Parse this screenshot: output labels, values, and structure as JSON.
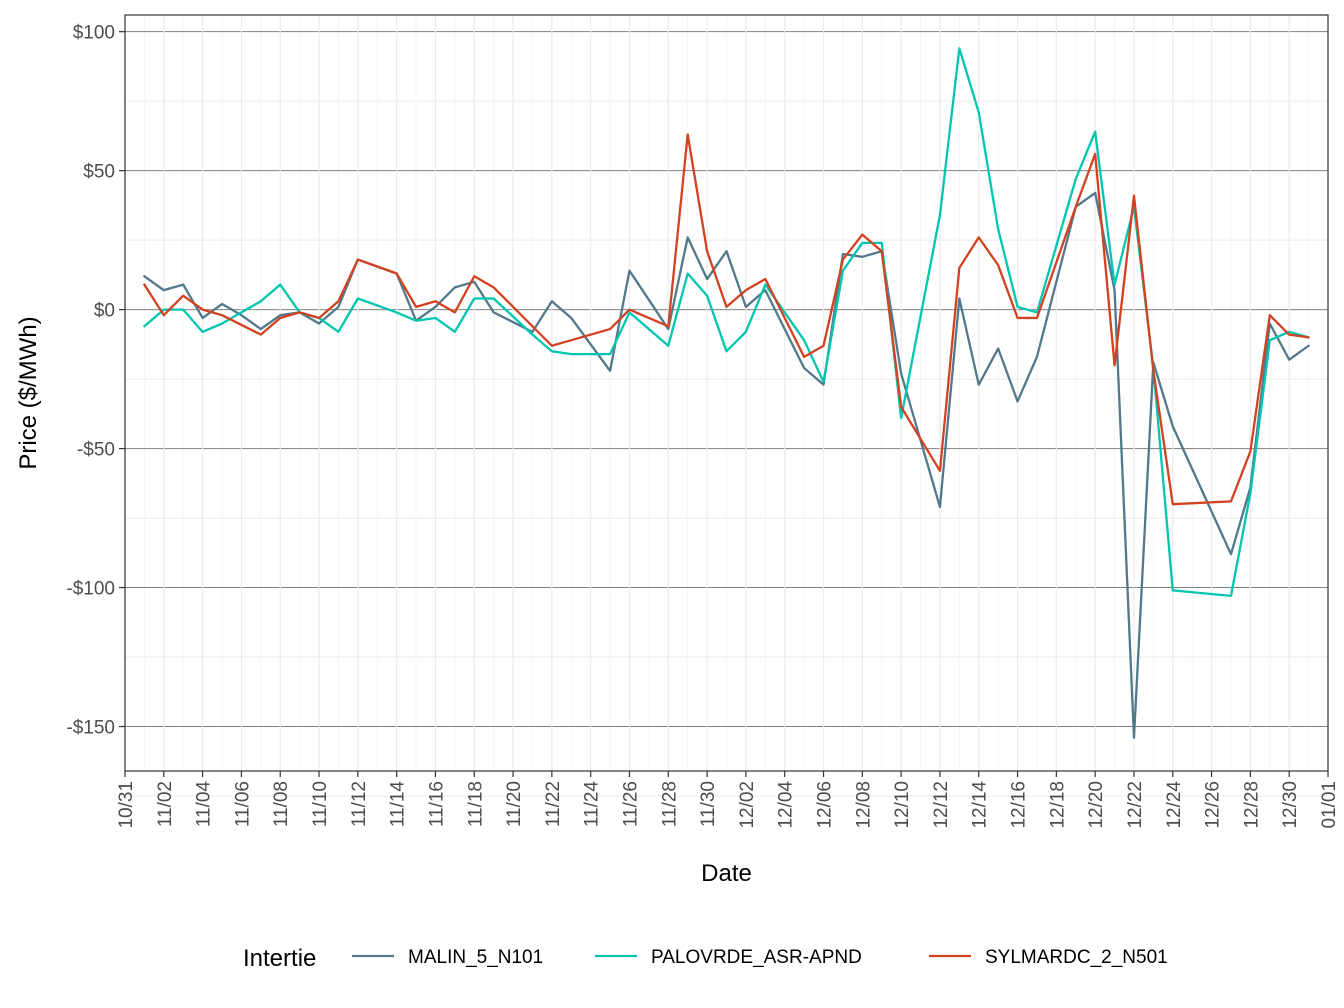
{
  "chart_data": {
    "type": "line",
    "xlabel": "Date",
    "ylabel": "Price ($/MWh)",
    "x_tick_labels": [
      "10/31",
      "11/02",
      "11/04",
      "11/06",
      "11/08",
      "11/10",
      "11/12",
      "11/14",
      "11/16",
      "11/18",
      "11/20",
      "11/22",
      "11/24",
      "11/26",
      "11/28",
      "11/30",
      "12/02",
      "12/04",
      "12/06",
      "12/08",
      "12/10",
      "12/12",
      "12/14",
      "12/16",
      "12/18",
      "12/20",
      "12/22",
      "12/24",
      "12/26",
      "12/28",
      "12/30",
      "01/01"
    ],
    "y_ticks": [
      100,
      50,
      0,
      -50,
      -100,
      -150
    ],
    "y_tick_labels": [
      "$100",
      "$50",
      "$0",
      "-$50",
      "-$100",
      "-$150"
    ],
    "ylim": [
      -166,
      106
    ],
    "x_range_days": [
      0,
      62
    ],
    "grid": true,
    "legend": {
      "title": "Intertie",
      "position": "bottom"
    },
    "series": [
      {
        "name": "MALIN_5_N101",
        "color": "#52788a",
        "points": [
          [
            "11/01",
            12
          ],
          [
            "11/02",
            7
          ],
          [
            "11/03",
            9
          ],
          [
            "11/04",
            -3
          ],
          [
            "11/05",
            2
          ],
          [
            "11/06",
            -2
          ],
          [
            "11/07",
            -7
          ],
          [
            "11/08",
            -2
          ],
          [
            "11/09",
            -1
          ],
          [
            "11/10",
            -5
          ],
          [
            "11/11",
            1
          ],
          [
            "11/12",
            18
          ],
          [
            "11/14",
            13
          ],
          [
            "11/15",
            -4
          ],
          [
            "11/16",
            1
          ],
          [
            "11/17",
            8
          ],
          [
            "11/18",
            10
          ],
          [
            "11/19",
            -1
          ],
          [
            "11/21",
            -8
          ],
          [
            "11/22",
            3
          ],
          [
            "11/23",
            -3
          ],
          [
            "11/25",
            -22
          ],
          [
            "11/26",
            14
          ],
          [
            "11/28",
            -7
          ],
          [
            "11/29",
            26
          ],
          [
            "11/30",
            11
          ],
          [
            "12/01",
            21
          ],
          [
            "12/02",
            1
          ],
          [
            "12/03",
            7
          ],
          [
            "12/05",
            -21
          ],
          [
            "12/06",
            -27
          ],
          [
            "12/07",
            20
          ],
          [
            "12/08",
            19
          ],
          [
            "12/09",
            21
          ],
          [
            "12/10",
            -23
          ],
          [
            "12/12",
            -71
          ],
          [
            "12/13",
            4
          ],
          [
            "12/14",
            -27
          ],
          [
            "12/15",
            -14
          ],
          [
            "12/16",
            -33
          ],
          [
            "12/17",
            -17
          ],
          [
            "12/19",
            37
          ],
          [
            "12/20",
            42
          ],
          [
            "12/21",
            7
          ],
          [
            "12/22",
            -154
          ],
          [
            "12/23",
            -19
          ],
          [
            "12/24",
            -42
          ],
          [
            "12/27",
            -88
          ],
          [
            "12/28",
            -64
          ],
          [
            "12/29",
            -5
          ],
          [
            "12/30",
            -18
          ],
          [
            "12/31",
            -13
          ]
        ]
      },
      {
        "name": "PALOVRDE_ASR-APND",
        "color": "#00c5b0",
        "points": [
          [
            "11/01",
            -6
          ],
          [
            "11/02",
            0
          ],
          [
            "11/03",
            0
          ],
          [
            "11/04",
            -8
          ],
          [
            "11/05",
            -5
          ],
          [
            "11/06",
            -1
          ],
          [
            "11/07",
            3
          ],
          [
            "11/08",
            9
          ],
          [
            "11/09",
            -1
          ],
          [
            "11/10",
            -3
          ],
          [
            "11/11",
            -8
          ],
          [
            "11/12",
            4
          ],
          [
            "11/14",
            -1
          ],
          [
            "11/15",
            -4
          ],
          [
            "11/16",
            -3
          ],
          [
            "11/17",
            -8
          ],
          [
            "11/18",
            4
          ],
          [
            "11/19",
            4
          ],
          [
            "11/21",
            -9
          ],
          [
            "11/22",
            -15
          ],
          [
            "11/23",
            -16
          ],
          [
            "11/25",
            -16
          ],
          [
            "11/26",
            -1
          ],
          [
            "11/28",
            -13
          ],
          [
            "11/29",
            13
          ],
          [
            "11/30",
            5
          ],
          [
            "12/01",
            -15
          ],
          [
            "12/02",
            -8
          ],
          [
            "12/03",
            9
          ],
          [
            "12/05",
            -11
          ],
          [
            "12/06",
            -26
          ],
          [
            "12/07",
            14
          ],
          [
            "12/08",
            24
          ],
          [
            "12/09",
            24
          ],
          [
            "12/10",
            -39
          ],
          [
            "12/12",
            34
          ],
          [
            "12/13",
            94
          ],
          [
            "12/14",
            71
          ],
          [
            "12/15",
            29
          ],
          [
            "12/16",
            1
          ],
          [
            "12/17",
            -1
          ],
          [
            "12/19",
            47
          ],
          [
            "12/20",
            64
          ],
          [
            "12/21",
            9
          ],
          [
            "12/22",
            37
          ],
          [
            "12/23",
            -21
          ],
          [
            "12/24",
            -101
          ],
          [
            "12/27",
            -103
          ],
          [
            "12/28",
            -66
          ],
          [
            "12/29",
            -11
          ],
          [
            "12/30",
            -8
          ],
          [
            "12/31",
            -10
          ]
        ]
      },
      {
        "name": "SYLMARDC_2_N501",
        "color": "#d24221",
        "points": [
          [
            "11/01",
            9
          ],
          [
            "11/02",
            -2
          ],
          [
            "11/03",
            5
          ],
          [
            "11/04",
            0
          ],
          [
            "11/05",
            -2
          ],
          [
            "11/07",
            -9
          ],
          [
            "11/08",
            -3
          ],
          [
            "11/09",
            -1
          ],
          [
            "11/10",
            -3
          ],
          [
            "11/11",
            3
          ],
          [
            "11/12",
            18
          ],
          [
            "11/14",
            13
          ],
          [
            "11/15",
            1
          ],
          [
            "11/16",
            3
          ],
          [
            "11/17",
            -1
          ],
          [
            "11/18",
            12
          ],
          [
            "11/19",
            8
          ],
          [
            "11/22",
            -13
          ],
          [
            "11/23",
            -11
          ],
          [
            "11/25",
            -7
          ],
          [
            "11/26",
            0
          ],
          [
            "11/28",
            -6
          ],
          [
            "11/29",
            63
          ],
          [
            "11/30",
            21
          ],
          [
            "12/01",
            1
          ],
          [
            "12/02",
            7
          ],
          [
            "12/03",
            11
          ],
          [
            "12/05",
            -17
          ],
          [
            "12/06",
            -13
          ],
          [
            "12/07",
            18
          ],
          [
            "12/08",
            27
          ],
          [
            "12/09",
            21
          ],
          [
            "12/10",
            -35
          ],
          [
            "12/12",
            -58
          ],
          [
            "12/13",
            15
          ],
          [
            "12/14",
            26
          ],
          [
            "12/15",
            16
          ],
          [
            "12/16",
            -3
          ],
          [
            "12/17",
            -3
          ],
          [
            "12/19",
            37
          ],
          [
            "12/20",
            56
          ],
          [
            "12/21",
            -20
          ],
          [
            "12/22",
            41
          ],
          [
            "12/23",
            -22
          ],
          [
            "12/24",
            -70
          ],
          [
            "12/27",
            -69
          ],
          [
            "12/28",
            -51
          ],
          [
            "12/29",
            -2
          ],
          [
            "12/30",
            -9
          ],
          [
            "12/31",
            -10
          ]
        ]
      }
    ]
  }
}
